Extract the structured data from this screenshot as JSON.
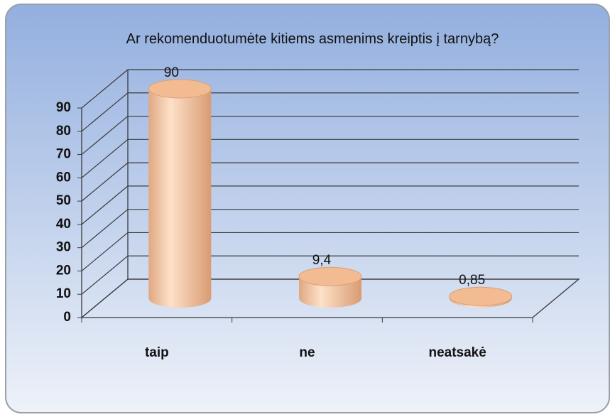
{
  "chart_data": {
    "type": "bar3d",
    "title": "Ar rekomenduotumėte kitiems asmenims kreiptis į tarnybą?",
    "categories": [
      "taip",
      "ne",
      "neatsakė"
    ],
    "values": [
      90,
      9.4,
      0.85
    ],
    "value_labels": [
      "90",
      "9,4",
      "0,85"
    ],
    "color": "#f5c29a",
    "ylim": [
      0,
      90
    ],
    "yticks": [
      0,
      10,
      20,
      30,
      40,
      50,
      60,
      70,
      80,
      90
    ],
    "grid": true
  }
}
